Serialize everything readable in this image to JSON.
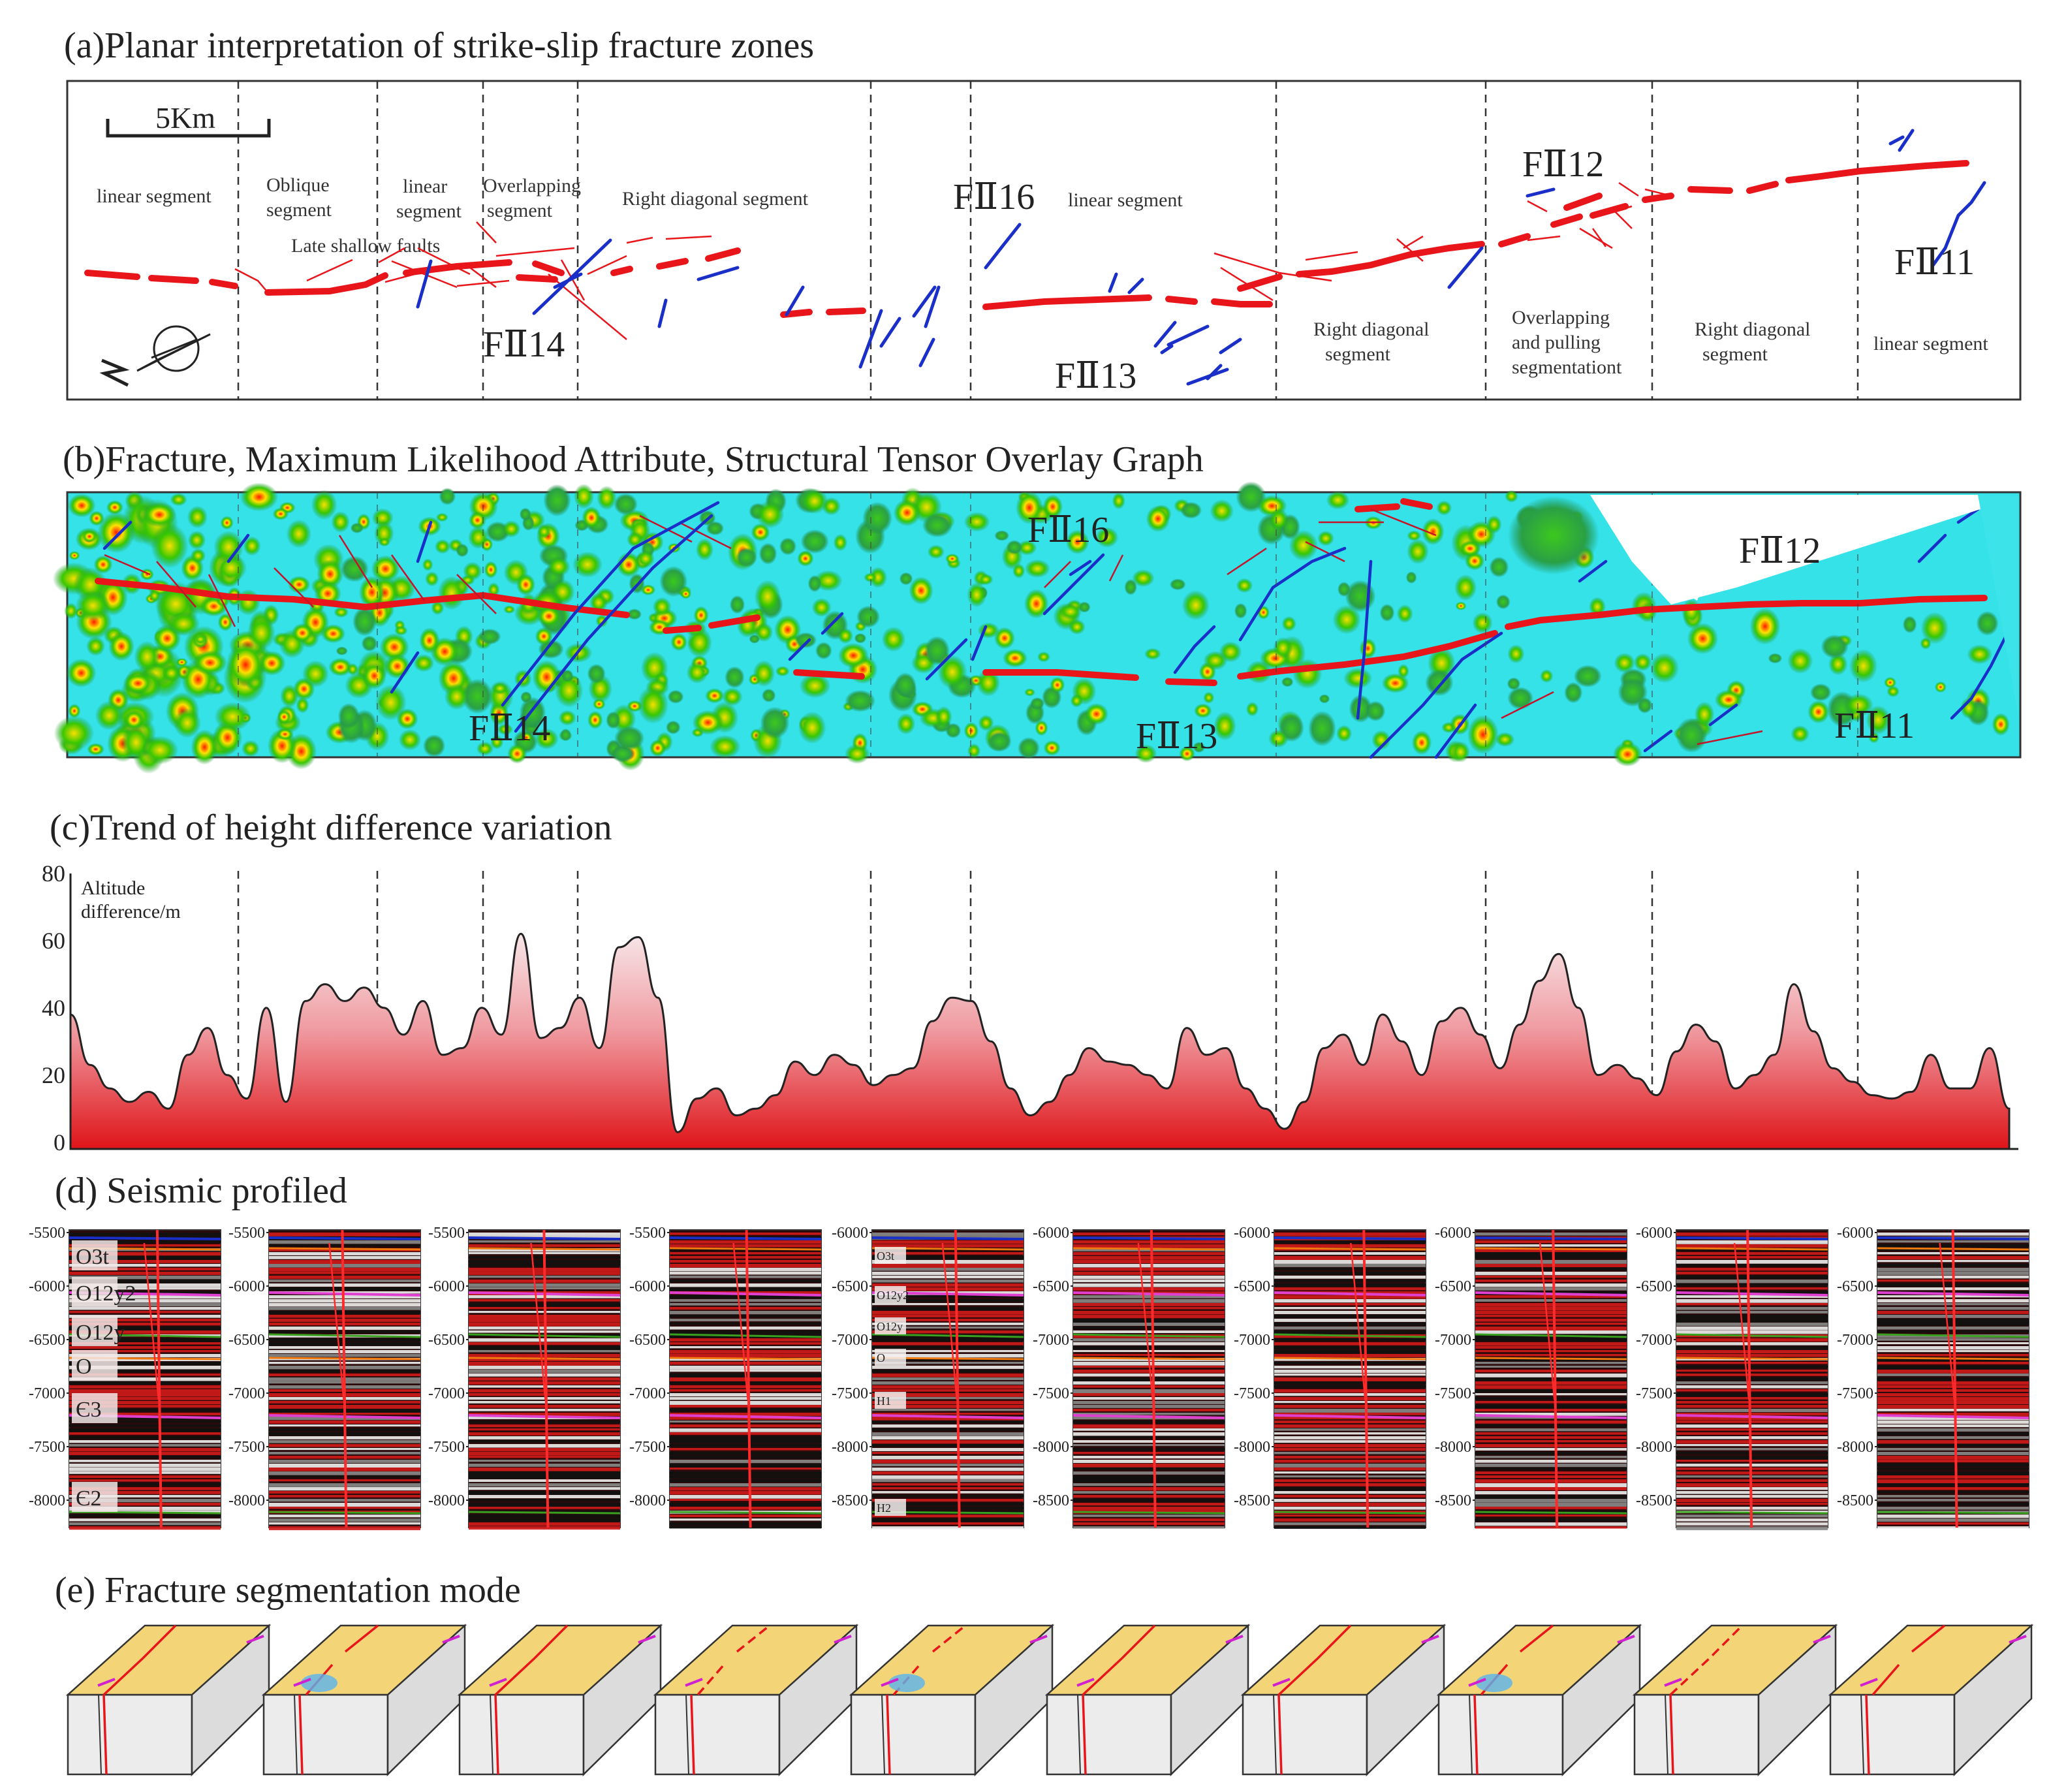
{
  "panel_a": {
    "title": "(a)Planar interpretation of strike-slip fracture zones",
    "scale": "5Km",
    "segments": [
      {
        "lines": [
          "linear segment"
        ]
      },
      {
        "lines": [
          "Oblique",
          "segment"
        ]
      },
      {
        "lines": [
          "linear",
          "segment"
        ]
      },
      {
        "lines": [
          "Overlapping",
          "segment"
        ]
      },
      {
        "lines": [
          "Right diagonal segment"
        ]
      },
      {
        "lines": [
          "linear segment"
        ]
      },
      {
        "lines": [
          "Right diagonal",
          "segment"
        ]
      },
      {
        "lines": [
          "Overlapping",
          "and pulling",
          "segmentationt"
        ]
      },
      {
        "lines": [
          "Right diagonal",
          "segment"
        ]
      },
      {
        "lines": [
          "linear segment"
        ]
      }
    ],
    "note": "Late shallow faults",
    "faults": [
      "FⅡ16",
      "FⅡ14",
      "FⅡ13",
      "FⅡ12",
      "FⅡ11"
    ]
  },
  "panel_b": {
    "title": "(b)Fracture, Maximum Likelihood Attribute, Structural Tensor Overlay Graph",
    "faults": [
      "FⅡ16",
      "FⅡ14",
      "FⅡ13",
      "FⅡ12",
      "FⅡ11"
    ]
  },
  "panel_c": {
    "title": "(c)Trend of height difference variation",
    "ylabel_lines": [
      "Altitude",
      "difference/m"
    ],
    "y_ticks": [
      "80",
      "60",
      "40",
      "20",
      "0"
    ]
  },
  "panel_d": {
    "title": "(d) Seismic profiled",
    "strata_main": [
      "O3t",
      "O12y2",
      "O12y",
      "O",
      "Є3",
      "Є2"
    ],
    "strata_small": [
      "O3t",
      "O12y2",
      "O12y",
      "O",
      "H1",
      "H2"
    ],
    "profiles": [
      {
        "ticks": [
          "-5500",
          "-6000",
          "-6500",
          "-7000",
          "-7500",
          "-8000"
        ]
      },
      {
        "ticks": [
          "-5500",
          "-6000",
          "-6500",
          "-7000",
          "-7500",
          "-8000"
        ]
      },
      {
        "ticks": [
          "-5500",
          "-6000",
          "-6500",
          "-7000",
          "-7500",
          "-8000"
        ]
      },
      {
        "ticks": [
          "-5500",
          "-6000",
          "-6500",
          "-7000",
          "-7500",
          "-8000"
        ]
      },
      {
        "ticks": [
          "-6000",
          "-6500",
          "-7000",
          "-7500",
          "-8000",
          "-8500"
        ]
      },
      {
        "ticks": [
          "-6000",
          "-6500",
          "-7000",
          "-7500",
          "-8000",
          "-8500"
        ]
      },
      {
        "ticks": [
          "-6000",
          "-6500",
          "-7000",
          "-7500",
          "-8000",
          "-8500"
        ]
      },
      {
        "ticks": [
          "-6000",
          "-6500",
          "-7000",
          "-7500",
          "-8000",
          "-8500"
        ]
      },
      {
        "ticks": [
          "-6000",
          "-6500",
          "-7000",
          "-7500",
          "-8000",
          "-8500"
        ]
      },
      {
        "ticks": [
          "-6000",
          "-6500",
          "-7000",
          "-7500",
          "-8000",
          "-8500"
        ]
      }
    ]
  },
  "panel_e": {
    "title": "(e) Fracture segmentation mode",
    "block_count": 10
  },
  "colors": {
    "fault_red": "#e8161b",
    "fault_blue": "#1a2fc8",
    "area_top": "#f5dde0",
    "area_bottom": "#e0141c",
    "block_top": "#f3d476",
    "block_side": "#e6e6e6"
  },
  "altitude_data": {
    "unit": "m",
    "x_km": [
      0,
      0.6,
      1.2,
      1.8,
      2.4,
      3.0,
      3.6,
      4.2,
      4.8,
      5.4,
      6.0,
      6.6,
      7.2,
      7.8,
      8.4,
      9.0,
      9.6,
      10.2,
      10.8,
      11.4,
      12.0,
      12.6,
      13.2,
      13.8,
      14.4,
      15.0,
      15.6,
      16.2,
      16.8,
      17.4,
      18.0,
      18.6,
      19.2,
      19.8,
      20.4,
      21.0,
      21.6,
      22.2,
      22.8,
      23.4,
      24.0,
      24.6,
      25.2,
      25.8,
      26.4,
      27.0,
      27.6,
      28.2,
      28.8,
      29.4,
      30.0,
      30.6,
      31.2,
      31.8,
      32.4,
      33.0,
      33.6,
      34.2,
      34.8,
      35.4,
      36.0,
      36.6,
      37.2,
      37.8,
      38.4,
      39.0,
      39.6,
      40.2,
      40.8,
      41.4,
      42.0,
      42.6,
      43.2,
      43.8,
      44.4,
      45.0,
      45.6,
      46.2,
      46.8,
      47.4,
      48.0,
      48.6,
      49.2,
      49.8,
      50.4,
      51.0,
      51.6,
      52.2,
      52.8,
      53.4,
      54.0,
      54.6,
      55.2,
      55.8,
      56.4,
      57.0,
      57.6,
      58.2,
      58.8,
      59.4
    ],
    "values": [
      40,
      25,
      18,
      14,
      17,
      12,
      28,
      36,
      22,
      15,
      42,
      14,
      44,
      49,
      44,
      48,
      42,
      34,
      44,
      28,
      30,
      42,
      34,
      64,
      33,
      36,
      45,
      30,
      60,
      63,
      45,
      5,
      15,
      18,
      10,
      12,
      16,
      26,
      22,
      28,
      25,
      19,
      22,
      24,
      38,
      45,
      44,
      32,
      18,
      10,
      14,
      22,
      30,
      26,
      25,
      22,
      18,
      36,
      28,
      30,
      18,
      12,
      6,
      14,
      30,
      34,
      25,
      40,
      32,
      22,
      38,
      42,
      34,
      24,
      37,
      50,
      58,
      42,
      22,
      25,
      21,
      16,
      29,
      37,
      32,
      18,
      22,
      28,
      49,
      35,
      24,
      20,
      16,
      15,
      17,
      28,
      18,
      18,
      30,
      12
    ]
  }
}
